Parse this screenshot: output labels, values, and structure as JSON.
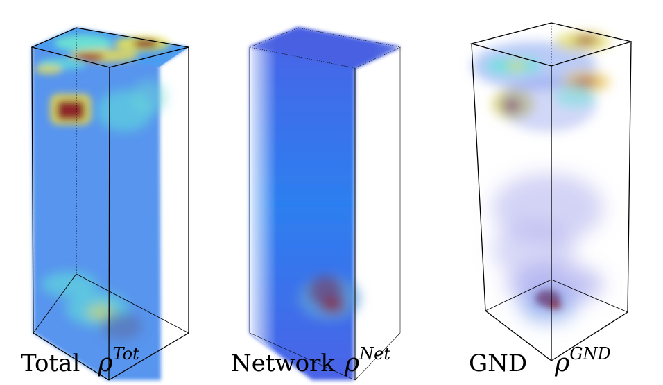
{
  "panels": [
    {
      "name": "Total",
      "symbol": "ρ",
      "superscript": "Tot"
    },
    {
      "name": "Network",
      "symbol": "ρ",
      "superscript": "Net"
    },
    {
      "name": "GND",
      "symbol": "ρ",
      "superscript": "GND"
    }
  ],
  "colors": {
    "background": "#ffffff",
    "volume_base": "#2f7de8",
    "low_density": "#4b90f0",
    "medium_density": "#5fe3d8",
    "high_density_yellow": "#e8e05a",
    "peak_density": "#8a1c2a",
    "sparse_violet": "#7f7ce8",
    "box_edges": "#000000"
  }
}
